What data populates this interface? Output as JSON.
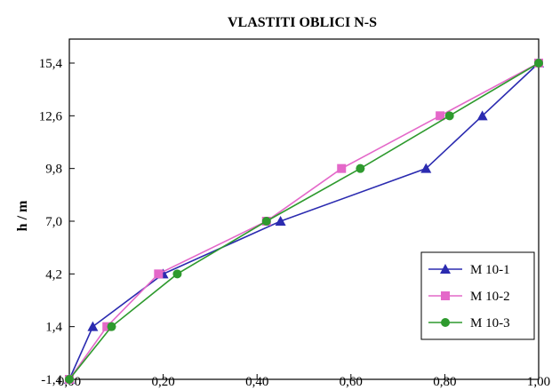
{
  "chart_data": {
    "type": "line",
    "title": "VLASTITI OBLICI N-S",
    "xlabel": "",
    "ylabel": "h / m",
    "xlim": [
      0.0,
      1.0
    ],
    "ylim": [
      -1.4,
      15.4
    ],
    "xticks": [
      "0,00",
      "0,20",
      "0,40",
      "0,60",
      "0,80",
      "1,00"
    ],
    "yticks": [
      "-1,4",
      "1,4",
      "4,2",
      "7,0",
      "9,8",
      "12,6",
      "15,4"
    ],
    "grid": false,
    "legend_position": "bottom-right",
    "series": [
      {
        "name": "M 10-1",
        "color": "#2b2bb0",
        "marker": "triangle",
        "x": [
          0.0,
          0.05,
          0.2,
          0.45,
          0.76,
          0.88,
          1.0
        ],
        "y": [
          -1.4,
          1.4,
          4.2,
          7.0,
          9.8,
          12.6,
          15.4
        ]
      },
      {
        "name": "M 10-2",
        "color": "#e468c9",
        "marker": "square",
        "x": [
          0.0,
          0.08,
          0.19,
          0.42,
          0.58,
          0.79,
          1.0
        ],
        "y": [
          -1.4,
          1.4,
          4.2,
          7.0,
          9.8,
          12.6,
          15.4
        ]
      },
      {
        "name": "M 10-3",
        "color": "#2e9a2e",
        "marker": "circle",
        "x": [
          0.0,
          0.09,
          0.23,
          0.42,
          0.62,
          0.81,
          1.0
        ],
        "y": [
          -1.4,
          1.4,
          4.2,
          7.0,
          9.8,
          12.6,
          15.4
        ]
      }
    ]
  }
}
